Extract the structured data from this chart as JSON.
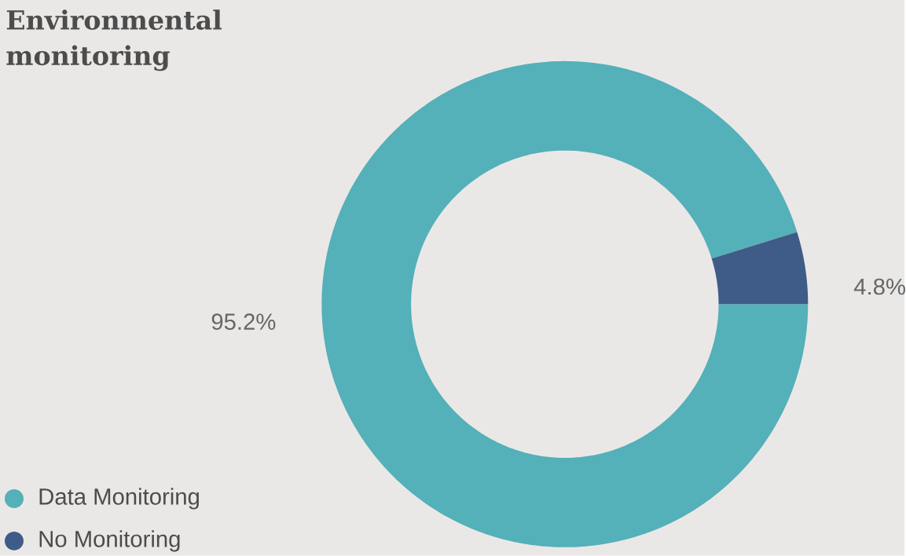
{
  "chart_data": {
    "type": "donut",
    "title": "Environmental monitoring",
    "categories": [
      "Data Monitoring",
      "No Monitoring"
    ],
    "values": [
      95.2,
      4.8
    ],
    "colors": [
      "#54b0b9",
      "#3e5c87"
    ],
    "value_labels": [
      "95.2%",
      "4.8%"
    ],
    "legend": "bottom left"
  }
}
